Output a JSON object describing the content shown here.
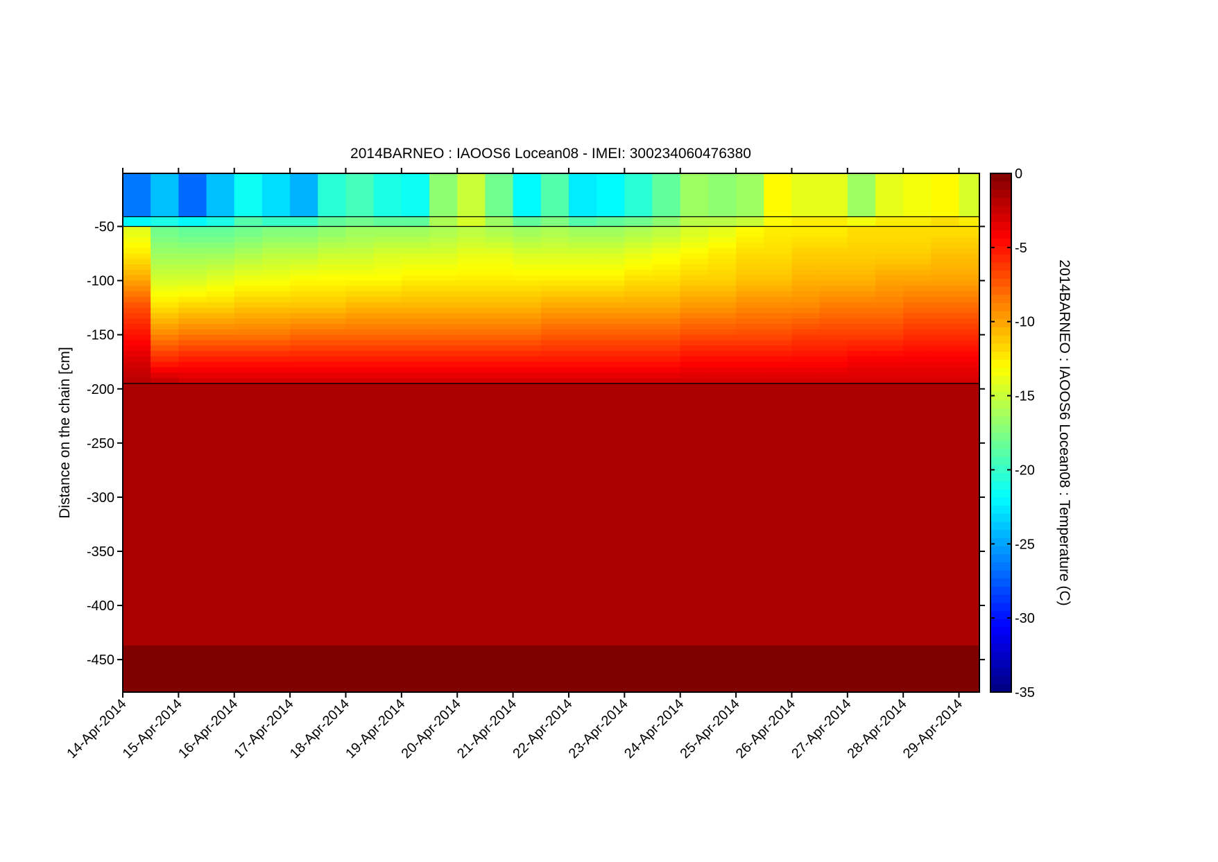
{
  "chart_data": {
    "type": "heatmap",
    "title": "2014BARNEO : IAOOS6  Locean08 - IMEI: 300234060476380",
    "xlabel": "",
    "ylabel": "Distance on the chain [cm]",
    "colorbar_label": "2014BARNEO : IAOOS6  Locean08 : Temperature (C)",
    "colormap": "jet",
    "clim": [
      -35,
      0
    ],
    "colorbar_ticks": [
      "0",
      "-5",
      "-10",
      "-15",
      "-20",
      "-25",
      "-30",
      "-35"
    ],
    "colorbar_tick_values": [
      0,
      -5,
      -10,
      -15,
      -20,
      -25,
      -30,
      -35
    ],
    "ylim": [
      -480,
      -1
    ],
    "y_ticks": [
      -50,
      -100,
      -150,
      -200,
      -250,
      -300,
      -350,
      -400,
      -450
    ],
    "y_tick_labels": [
      "-50",
      "-100",
      "-150",
      "-200",
      "-250",
      "-300",
      "-350",
      "-400",
      "-450"
    ],
    "x_tick_labels": [
      "14-Apr-2014",
      "15-Apr-2014",
      "16-Apr-2014",
      "17-Apr-2014",
      "18-Apr-2014",
      "19-Apr-2014",
      "20-Apr-2014",
      "21-Apr-2014",
      "22-Apr-2014",
      "23-Apr-2014",
      "24-Apr-2014",
      "25-Apr-2014",
      "26-Apr-2014",
      "27-Apr-2014",
      "28-Apr-2014",
      "29-Apr-2014"
    ],
    "xlim": [
      "14-Apr-2014 00:00",
      "29-Apr-2014 09:00"
    ],
    "interface_lines_cm": [
      -41,
      -50,
      -195
    ],
    "times": [
      "14-Apr-2014 00:00",
      "14-Apr-2014 12:00",
      "15-Apr-2014 00:00",
      "15-Apr-2014 12:00",
      "16-Apr-2014 00:00",
      "16-Apr-2014 12:00",
      "17-Apr-2014 00:00",
      "17-Apr-2014 12:00",
      "18-Apr-2014 00:00",
      "18-Apr-2014 12:00",
      "19-Apr-2014 00:00",
      "19-Apr-2014 12:00",
      "20-Apr-2014 00:00",
      "20-Apr-2014 12:00",
      "21-Apr-2014 00:00",
      "21-Apr-2014 12:00",
      "22-Apr-2014 00:00",
      "22-Apr-2014 12:00",
      "23-Apr-2014 00:00",
      "23-Apr-2014 12:00",
      "24-Apr-2014 00:00",
      "24-Apr-2014 12:00",
      "25-Apr-2014 00:00",
      "25-Apr-2014 12:00",
      "26-Apr-2014 00:00",
      "26-Apr-2014 12:00",
      "27-Apr-2014 00:00",
      "27-Apr-2014 12:00",
      "28-Apr-2014 00:00",
      "28-Apr-2014 12:00",
      "29-Apr-2014 00:00",
      "29-Apr-2014 12:00"
    ],
    "layers": [
      {
        "depth_top": -1,
        "depth_bottom": -41,
        "values": [
          -26.5,
          -24,
          -27,
          -24,
          -21.5,
          -23,
          -24.5,
          -20.5,
          -19.5,
          -21,
          -21.5,
          -17,
          -15,
          -18,
          -22,
          -19,
          -22.5,
          -22,
          -20.5,
          -18.5,
          -16.5,
          -17,
          -16.5,
          -13,
          -14,
          -14,
          -16.5,
          -14,
          -13.5,
          -13,
          -14.5,
          -14.5
        ]
      },
      {
        "depth_top": -41,
        "depth_bottom": -50,
        "values": [
          -22,
          -21,
          -22,
          -21,
          -19,
          -20,
          -20,
          -18.5,
          -18,
          -18.5,
          -18.5,
          -16,
          -14.5,
          -16.5,
          -18.5,
          -17.5,
          -19,
          -18.5,
          -18,
          -17,
          -15.5,
          -15.5,
          -15,
          -13,
          -12.5,
          -12.5,
          -13.5,
          -12.5,
          -12.5,
          -12,
          -12.5,
          -12.5
        ]
      }
    ],
    "ice_profile": {
      "depth_top": -50,
      "depth_bottom": -195,
      "levels_cm": [
        -55,
        -75,
        -100,
        -125,
        -150,
        -175,
        -192
      ],
      "values": [
        [
          -14,
          -18,
          -18.5,
          -18.5,
          -18,
          -17.5,
          -17.5,
          -17,
          -16.5,
          -16.5,
          -16.5,
          -16,
          -15.5,
          -16,
          -16.5,
          -16,
          -16.5,
          -16.5,
          -16,
          -15.5,
          -14.5,
          -14,
          -13,
          -12.5,
          -12.5,
          -12.5,
          -12,
          -12,
          -12,
          -12,
          -12,
          -12
        ],
        [
          -12.5,
          -16.5,
          -16.5,
          -16.5,
          -16,
          -15.5,
          -15.5,
          -15,
          -15,
          -14.5,
          -14.5,
          -14.5,
          -14,
          -14,
          -14.5,
          -14.5,
          -14.5,
          -14.5,
          -14,
          -13.5,
          -13,
          -12.5,
          -12,
          -12,
          -11.5,
          -11.5,
          -11.5,
          -11.5,
          -11.5,
          -11,
          -11,
          -11
        ],
        [
          -10,
          -14.5,
          -14.5,
          -14,
          -13.5,
          -13.5,
          -13,
          -13,
          -13,
          -13,
          -12.5,
          -12.5,
          -12.5,
          -12.5,
          -12.5,
          -12.5,
          -12.5,
          -12.5,
          -12,
          -12,
          -11.5,
          -11.5,
          -11,
          -11,
          -10.5,
          -10.5,
          -10.5,
          -10,
          -10,
          -10,
          -10,
          -10
        ],
        [
          -7,
          -12,
          -11.5,
          -11.5,
          -11,
          -11,
          -11,
          -11,
          -10.5,
          -10.5,
          -10.5,
          -10.5,
          -10.5,
          -10.5,
          -10.5,
          -10,
          -10,
          -10,
          -10,
          -10,
          -9.5,
          -9.5,
          -9,
          -9,
          -9,
          -8.5,
          -8.5,
          -8.5,
          -8,
          -8,
          -8,
          -8
        ],
        [
          -5,
          -9,
          -8.5,
          -8.5,
          -8.5,
          -8.5,
          -8,
          -8,
          -8,
          -8,
          -8,
          -8,
          -8,
          -8,
          -8,
          -7.5,
          -7.5,
          -7.5,
          -7.5,
          -7.5,
          -7,
          -7,
          -7,
          -7,
          -6.5,
          -6.5,
          -6.5,
          -6.5,
          -6,
          -6,
          -6,
          -6
        ],
        [
          -3,
          -5.5,
          -5,
          -5,
          -5,
          -5,
          -5,
          -5,
          -5,
          -5,
          -5,
          -5,
          -5,
          -5,
          -5,
          -5,
          -5,
          -5,
          -5,
          -5,
          -4.5,
          -4.5,
          -4.5,
          -4.5,
          -4.5,
          -4.5,
          -4,
          -4,
          -4,
          -4,
          -4,
          -4
        ],
        [
          -2,
          -2.5,
          -3,
          -3,
          -3,
          -3,
          -3,
          -3,
          -3,
          -3,
          -3,
          -3,
          -3,
          -3,
          -3,
          -3,
          -3,
          -3,
          -3,
          -3,
          -3,
          -3,
          -3,
          -3,
          -3,
          -3,
          -3,
          -3,
          -3,
          -3,
          -3,
          -3
        ]
      ]
    },
    "lower_layers": [
      {
        "depth_top": -195,
        "depth_bottom": -437,
        "value": -1.5
      },
      {
        "depth_top": -437,
        "depth_bottom": -480,
        "value": 0
      }
    ]
  }
}
